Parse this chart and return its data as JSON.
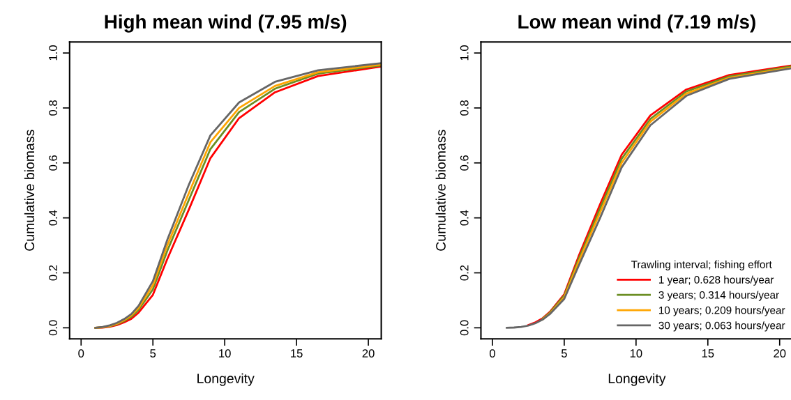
{
  "chart_data": [
    {
      "type": "line",
      "title": "High mean wind (7.95 m/s)",
      "xlabel": "Longevity",
      "ylabel": "Cumulative biomass",
      "x": [
        1,
        1.5,
        2,
        2.5,
        3,
        3.5,
        4,
        5,
        6,
        7.5,
        9,
        11,
        13.5,
        16.5,
        20.9
      ],
      "series": [
        {
          "color": "#ff0000",
          "values": [
            0,
            0.001,
            0.004,
            0.01,
            0.02,
            0.033,
            0.055,
            0.12,
            0.25,
            0.43,
            0.617,
            0.763,
            0.857,
            0.916,
            0.951
          ]
        },
        {
          "color": "#6b8e23",
          "values": [
            0,
            0.002,
            0.006,
            0.013,
            0.025,
            0.04,
            0.065,
            0.14,
            0.28,
            0.465,
            0.65,
            0.785,
            0.87,
            0.925,
            0.955
          ]
        },
        {
          "color": "#ffa500",
          "values": [
            0,
            0.002,
            0.007,
            0.015,
            0.028,
            0.045,
            0.072,
            0.155,
            0.3,
            0.49,
            0.675,
            0.8,
            0.88,
            0.93,
            0.958
          ]
        },
        {
          "color": "#666666",
          "values": [
            0,
            0.003,
            0.009,
            0.018,
            0.032,
            0.05,
            0.08,
            0.17,
            0.32,
            0.52,
            0.7,
            0.82,
            0.895,
            0.937,
            0.963
          ]
        }
      ],
      "xlim": [
        -0.8,
        20.9
      ],
      "ylim": [
        -0.04,
        1.04
      ],
      "xticks": [
        0,
        5,
        10,
        15,
        20
      ],
      "yticks": [
        {
          "value": 0,
          "label": "0.0"
        },
        {
          "value": 0.2,
          "label": "0.2"
        },
        {
          "value": 0.4,
          "label": "0.4"
        },
        {
          "value": 0.6,
          "label": "0.6"
        },
        {
          "value": 0.8,
          "label": "0.8"
        },
        {
          "value": 1,
          "label": "1.0"
        }
      ],
      "grid": false,
      "legend": false
    },
    {
      "type": "line",
      "title": "Low mean wind (7.19 m/s)",
      "xlabel": "Longevity",
      "ylabel": "Cumulative biomass",
      "legend_title": "Trawling interval; fishing effort",
      "x": [
        1,
        1.5,
        2,
        2.5,
        3,
        3.5,
        4,
        5,
        6,
        7.5,
        9,
        11,
        13.5,
        16.5,
        20.9
      ],
      "series": [
        {
          "name": "1 year; 0.628 hours/year",
          "color": "#ff0000",
          "values": [
            null,
            null,
            null,
            0.01,
            0.02,
            0.035,
            0.058,
            0.122,
            0.26,
            0.45,
            0.63,
            0.773,
            0.867,
            0.92,
            0.955
          ]
        },
        {
          "name": "3 years; 0.314 hours/year",
          "color": "#6b8e23",
          "values": [
            null,
            null,
            null,
            null,
            null,
            0.033,
            0.055,
            0.117,
            0.25,
            0.435,
            0.615,
            0.76,
            0.86,
            0.915,
            0.952
          ]
        },
        {
          "name": "10 years; 0.209 hours/year",
          "color": "#ffa500",
          "values": [
            null,
            null,
            null,
            null,
            null,
            0.031,
            0.052,
            0.111,
            0.24,
            0.42,
            0.6,
            0.75,
            0.852,
            0.91,
            0.948
          ]
        },
        {
          "name": "30 years; 0.063 hours/year",
          "color": "#666666",
          "values": [
            0,
            0.001,
            0.003,
            0.008,
            0.017,
            0.03,
            0.05,
            0.105,
            0.225,
            0.4,
            0.584,
            0.737,
            0.844,
            0.906,
            0.945
          ]
        }
      ],
      "xlim": [
        -0.8,
        20.9
      ],
      "ylim": [
        -0.04,
        1.04
      ],
      "xticks": [
        0,
        5,
        10,
        15,
        20
      ],
      "yticks": [
        {
          "value": 0,
          "label": "0.0"
        },
        {
          "value": 0.2,
          "label": "0.2"
        },
        {
          "value": 0.4,
          "label": "0.4"
        },
        {
          "value": 0.6,
          "label": "0.6"
        },
        {
          "value": 0.8,
          "label": "0.8"
        },
        {
          "value": 1,
          "label": "1.0"
        }
      ],
      "grid": false,
      "legend": "bottom right"
    }
  ]
}
